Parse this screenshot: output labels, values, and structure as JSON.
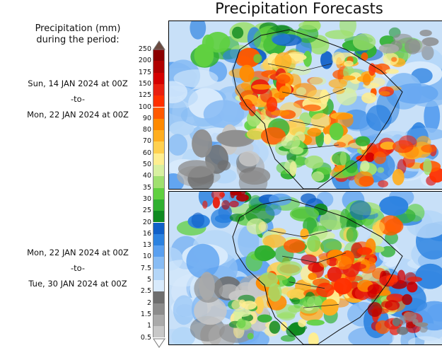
{
  "title": "Precipitation Forecasts",
  "legend": {
    "heading_line1": "Precipitation (mm)",
    "heading_line2": "during the period:",
    "levels": [
      "250",
      "200",
      "175",
      "150",
      "125",
      "100",
      "90",
      "80",
      "70",
      "60",
      "50",
      "40",
      "35",
      "30",
      "25",
      "20",
      "16",
      "13",
      "10",
      "7.5",
      "5",
      "2.5",
      "2",
      "1.5",
      "1",
      "0.5"
    ],
    "colors": [
      "#6b4a3f",
      "#8c0000",
      "#b00000",
      "#d40000",
      "#e82010",
      "#ff3000",
      "#ff5a00",
      "#ff8a00",
      "#ffae20",
      "#ffd050",
      "#ffee90",
      "#d8f0a0",
      "#a0e070",
      "#60d040",
      "#30b030",
      "#108a20",
      "#1060c8",
      "#2c82e0",
      "#5aa0f0",
      "#88bcf4",
      "#b4d6f8",
      "#d8eafc",
      "#6e6e6e",
      "#8c8c8c",
      "#aaaaaa",
      "#c8c8c8",
      "#e8e8e8"
    ],
    "top_arrow_color": "#6b4a3f",
    "bottom_arrow_color": "#ffffff"
  },
  "periods": [
    {
      "start": "Sun, 14 JAN 2024 at 00Z",
      "sep": "-to-",
      "end": "Mon, 22 JAN 2024 at 00Z"
    },
    {
      "start": "Mon, 22 JAN 2024 at 00Z",
      "sep": "-to-",
      "end": "Tue, 30 JAN 2024 at 00Z"
    }
  ],
  "maps": [
    {
      "name": "forecast-map-period-1"
    },
    {
      "name": "forecast-map-period-2"
    }
  ]
}
